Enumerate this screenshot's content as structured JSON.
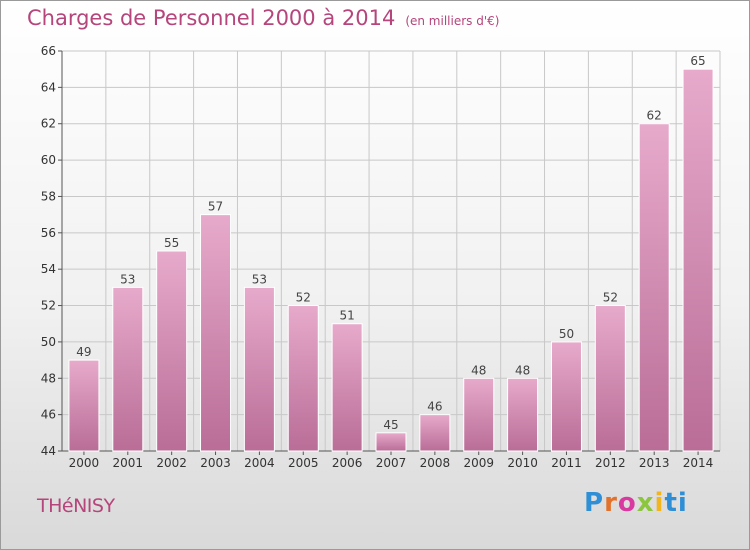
{
  "header": {
    "title": "Charges de Personnel 2000 à 2014",
    "subtitle": "(en milliers d'€)"
  },
  "footer": {
    "commune": "THéNISY",
    "logo_parts": [
      "P",
      "r",
      "o",
      "x",
      "i",
      "ti"
    ]
  },
  "colors": {
    "title": "#b5457a",
    "bar_top": "#e7aacb",
    "bar_bottom": "#b96d97",
    "grid": "#c8c8c8"
  },
  "chart_data": {
    "type": "bar",
    "title": "Charges de Personnel 2000 à 2014",
    "xlabel": "",
    "ylabel": "",
    "categories": [
      "2000",
      "2001",
      "2002",
      "2003",
      "2004",
      "2005",
      "2006",
      "2007",
      "2008",
      "2009",
      "2010",
      "2011",
      "2012",
      "2013",
      "2014"
    ],
    "values": [
      49,
      53,
      55,
      57,
      53,
      52,
      51,
      45,
      46,
      48,
      48,
      50,
      52,
      62,
      65
    ],
    "ylim": [
      44,
      66
    ],
    "yticks": [
      44,
      46,
      48,
      50,
      52,
      54,
      56,
      58,
      60,
      62,
      64,
      66
    ],
    "grid": true,
    "data_labels": true
  }
}
